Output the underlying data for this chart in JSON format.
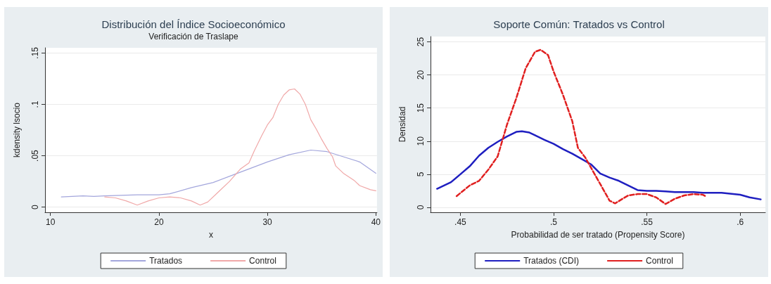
{
  "chart_data": [
    {
      "type": "line",
      "title": "Distribución del Índice Socioeconómico",
      "subtitle": "Verificación de Traslape",
      "xlabel": "x",
      "ylabel": "kdensity lsocio",
      "xlim": [
        9.5,
        40.1
      ],
      "xticks": [
        10,
        20,
        30,
        40
      ],
      "ylim": [
        -0.005,
        0.155
      ],
      "yticks": [
        0,
        {
          "value": 0.05,
          "label": ".05"
        },
        {
          "value": 0.1,
          "label": ".1"
        },
        {
          "value": 0.15,
          "label": ".15"
        }
      ],
      "grid": "y",
      "legend": "bottom",
      "marker": "none",
      "series": [
        {
          "name": "Tratados",
          "color": "#a3a6dc",
          "line_style": "solid",
          "x": [
            11,
            13,
            14,
            15,
            18,
            20,
            21,
            23,
            25,
            27,
            30,
            32,
            34,
            35.5,
            37,
            38.5,
            40
          ],
          "values": [
            0.01,
            0.011,
            0.0105,
            0.011,
            0.012,
            0.012,
            0.013,
            0.019,
            0.024,
            0.032,
            0.044,
            0.051,
            0.0555,
            0.054,
            0.049,
            0.044,
            0.033
          ]
        },
        {
          "name": "Control",
          "color": "#f0a8a8",
          "line_style": "solid",
          "x": [
            15,
            16,
            17,
            18,
            19,
            20,
            21,
            22,
            23,
            23.8,
            24.5,
            25.5,
            26.5,
            27.5,
            28.3,
            28.8,
            29.5,
            30,
            30.5,
            31,
            31.5,
            32,
            32.5,
            33,
            33.5,
            34,
            34.5,
            35,
            35.5,
            36,
            36.3,
            37,
            38,
            38.5,
            39.5,
            40
          ],
          "values": [
            0.01,
            0.009,
            0.006,
            0.002,
            0.006,
            0.009,
            0.01,
            0.009,
            0.006,
            0.002,
            0.005,
            0.015,
            0.025,
            0.037,
            0.043,
            0.055,
            0.07,
            0.08,
            0.087,
            0.1,
            0.109,
            0.114,
            0.115,
            0.11,
            0.1,
            0.085,
            0.076,
            0.066,
            0.057,
            0.049,
            0.04,
            0.033,
            0.026,
            0.021,
            0.017,
            0.016
          ]
        }
      ]
    },
    {
      "type": "line",
      "title": "Soporte Común: Tratados vs Control",
      "xlabel": "Probabilidad de ser tratado (Propensity Score)",
      "ylabel": "Densidad",
      "xlim": [
        0.434,
        0.6135
      ],
      "xticks": [
        {
          "value": 0.45,
          "label": ".45"
        },
        {
          "value": 0.5,
          "label": ".5"
        },
        {
          "value": 0.55,
          "label": ".55"
        },
        {
          "value": 0.6,
          "label": ".6"
        }
      ],
      "ylim": [
        -0.75,
        25.8
      ],
      "yticks": [
        0,
        5,
        10,
        15,
        20,
        25
      ],
      "grid": "y",
      "legend": "bottom",
      "marker": "none",
      "series": [
        {
          "name": "Tratados (CDI)",
          "color": "#1f1fc0",
          "line_style": "solid",
          "x": [
            0.4375,
            0.445,
            0.45,
            0.455,
            0.46,
            0.465,
            0.47,
            0.475,
            0.48,
            0.483,
            0.487,
            0.49,
            0.495,
            0.5,
            0.505,
            0.51,
            0.515,
            0.52,
            0.525,
            0.53,
            0.535,
            0.54,
            0.545,
            0.55,
            0.555,
            0.56,
            0.565,
            0.57,
            0.575,
            0.58,
            0.59,
            0.6,
            0.605,
            0.611
          ],
          "values": [
            2.8,
            3.8,
            5.0,
            6.2,
            7.8,
            9.0,
            9.9,
            10.7,
            11.4,
            11.5,
            11.3,
            10.9,
            10.2,
            9.6,
            8.8,
            8.1,
            7.3,
            6.5,
            5.1,
            4.5,
            4.0,
            3.3,
            2.6,
            2.5,
            2.5,
            2.4,
            2.3,
            2.3,
            2.3,
            2.2,
            2.2,
            1.9,
            1.5,
            1.2
          ]
        },
        {
          "name": "Control",
          "color": "#e02020",
          "line_style": "dashed",
          "x": [
            0.448,
            0.455,
            0.46,
            0.465,
            0.47,
            0.475,
            0.48,
            0.485,
            0.49,
            0.493,
            0.497,
            0.5,
            0.505,
            0.51,
            0.513,
            0.517,
            0.52,
            0.525,
            0.53,
            0.533,
            0.537,
            0.54,
            0.545,
            0.55,
            0.555,
            0.56,
            0.565,
            0.57,
            0.575,
            0.58,
            0.582
          ],
          "values": [
            1.7,
            3.3,
            4.0,
            5.7,
            7.7,
            12.5,
            16.5,
            21.0,
            23.5,
            23.8,
            23.0,
            20.5,
            17.0,
            13.0,
            9.0,
            7.5,
            6.0,
            3.5,
            1.0,
            0.6,
            1.3,
            1.8,
            2.0,
            2.0,
            1.5,
            0.5,
            1.3,
            1.8,
            2.0,
            1.9,
            1.6
          ]
        }
      ]
    }
  ]
}
